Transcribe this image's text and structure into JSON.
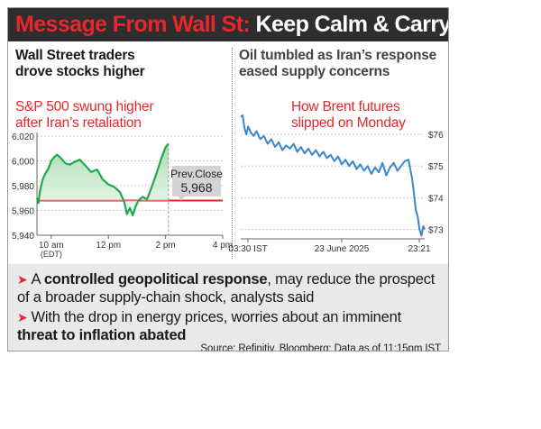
{
  "headline": {
    "part1": "Message From Wall St:",
    "part2": "Keep Calm & Carry On"
  },
  "colors": {
    "accent_red": "#e8262b",
    "green_line": "#1fa84f",
    "blue_line": "#3a86c8",
    "dark_bar": "#2e2e2e"
  },
  "left_panel": {
    "title_line1": "Wall Street traders",
    "title_line2": "drove stocks higher",
    "chart_title_line1": "S&P 500 swung higher",
    "chart_title_line2": "after Iran’s retaliation",
    "prev_close_label": "Prev.Close",
    "prev_close_value": "5,968"
  },
  "right_panel": {
    "title_line1": "Oil tumbled as Iran’s response",
    "title_line2": "eased supply concerns",
    "chart_title_line1": "How Brent futures",
    "chart_title_line2": "slipped on Monday"
  },
  "chart_data": [
    {
      "type": "area",
      "title": "S&P 500 swung higher after Iran’s retaliation",
      "x_unit": "hours (EDT)",
      "xlim": [
        9.5,
        16.0
      ],
      "ylim": [
        5940,
        6020
      ],
      "yticks": [
        5940,
        5960,
        5980,
        6000,
        6020
      ],
      "ytick_labels": [
        "5,940",
        "5,960",
        "5,980",
        "6,000",
        "6,020"
      ],
      "xticks": [
        10,
        12,
        14,
        16
      ],
      "xtick_labels": [
        "10 am",
        "12 pm",
        "2 pm",
        "4 pm"
      ],
      "xtick_sublabel": "(EDT)",
      "reference_line": {
        "name": "Prev.Close",
        "value": 5968
      },
      "grid": "horizontal",
      "x": [
        9.5,
        9.55,
        9.6,
        9.7,
        9.8,
        9.9,
        10.0,
        10.1,
        10.2,
        10.35,
        10.5,
        10.65,
        10.8,
        11.0,
        11.2,
        11.4,
        11.6,
        11.8,
        12.0,
        12.2,
        12.4,
        12.55,
        12.65,
        12.75,
        12.85,
        12.95,
        13.05,
        13.2,
        13.35,
        13.5,
        13.7,
        13.85,
        14.0,
        14.1
      ],
      "y": [
        5970,
        5966,
        5975,
        5985,
        5990,
        5994,
        6000,
        6003,
        6005,
        6002,
        5998,
        5997,
        5999,
        6001,
        5996,
        5991,
        5993,
        5985,
        5981,
        5979,
        5975,
        5967,
        5957,
        5962,
        5956,
        5963,
        5968,
        5971,
        5969,
        5978,
        5991,
        6002,
        6011,
        6014
      ]
    },
    {
      "type": "line",
      "title": "How Brent futures slipped on Monday",
      "ylim": [
        72.7,
        76.4
      ],
      "yticks": [
        73,
        74,
        75,
        76
      ],
      "ytick_labels": [
        "$73",
        "$74",
        "$75",
        "$76"
      ],
      "xtick_labels": [
        "03:30 IST",
        "23 June 2025",
        "23:21"
      ],
      "x_unit": "hours (IST)",
      "xlim": [
        3.5,
        23.35
      ],
      "grid": "horizontal",
      "x": [
        3.5,
        3.7,
        3.9,
        4.1,
        4.3,
        4.6,
        4.9,
        5.2,
        5.6,
        6.0,
        6.4,
        6.8,
        7.2,
        7.6,
        8.0,
        8.4,
        8.8,
        9.2,
        9.6,
        10.0,
        10.4,
        10.8,
        11.2,
        11.6,
        12.0,
        12.4,
        12.8,
        13.2,
        13.6,
        14.0,
        14.4,
        14.8,
        15.2,
        15.6,
        16.0,
        16.4,
        16.8,
        17.2,
        17.6,
        18.0,
        18.4,
        18.8,
        19.2,
        19.6,
        20.0,
        20.4,
        20.8,
        21.2,
        21.6,
        22.0,
        22.2,
        22.4,
        22.6,
        22.8,
        23.0,
        23.2,
        23.35
      ],
      "y": [
        76.55,
        76.6,
        76.2,
        76.0,
        76.25,
        76.05,
        75.95,
        76.1,
        75.85,
        75.95,
        75.7,
        75.85,
        75.6,
        75.75,
        75.5,
        75.65,
        75.55,
        75.7,
        75.45,
        75.6,
        75.4,
        75.55,
        75.35,
        75.5,
        75.3,
        75.45,
        75.25,
        75.35,
        75.15,
        75.3,
        75.05,
        75.2,
        75.0,
        75.15,
        74.9,
        75.05,
        74.85,
        75.0,
        74.75,
        74.95,
        74.8,
        75.1,
        74.7,
        74.95,
        75.1,
        74.85,
        75.0,
        75.15,
        75.2,
        74.6,
        74.1,
        73.6,
        73.4,
        73.0,
        72.8,
        73.1,
        73.0
      ]
    }
  ],
  "bullets": {
    "b1_pre": "A ",
    "b1_bold": "controlled geopolitical response",
    "b1_post": ", may reduce the prospect",
    "b1_line2": "of a broader supply-chain shock, analysts said",
    "b2_line1": "With the drop in energy prices, worries about an imminent",
    "b2_bold": "threat to inflation abated"
  },
  "source": "Source: Refinitiv, Bloomberg; Data as of 11:15pm IST"
}
